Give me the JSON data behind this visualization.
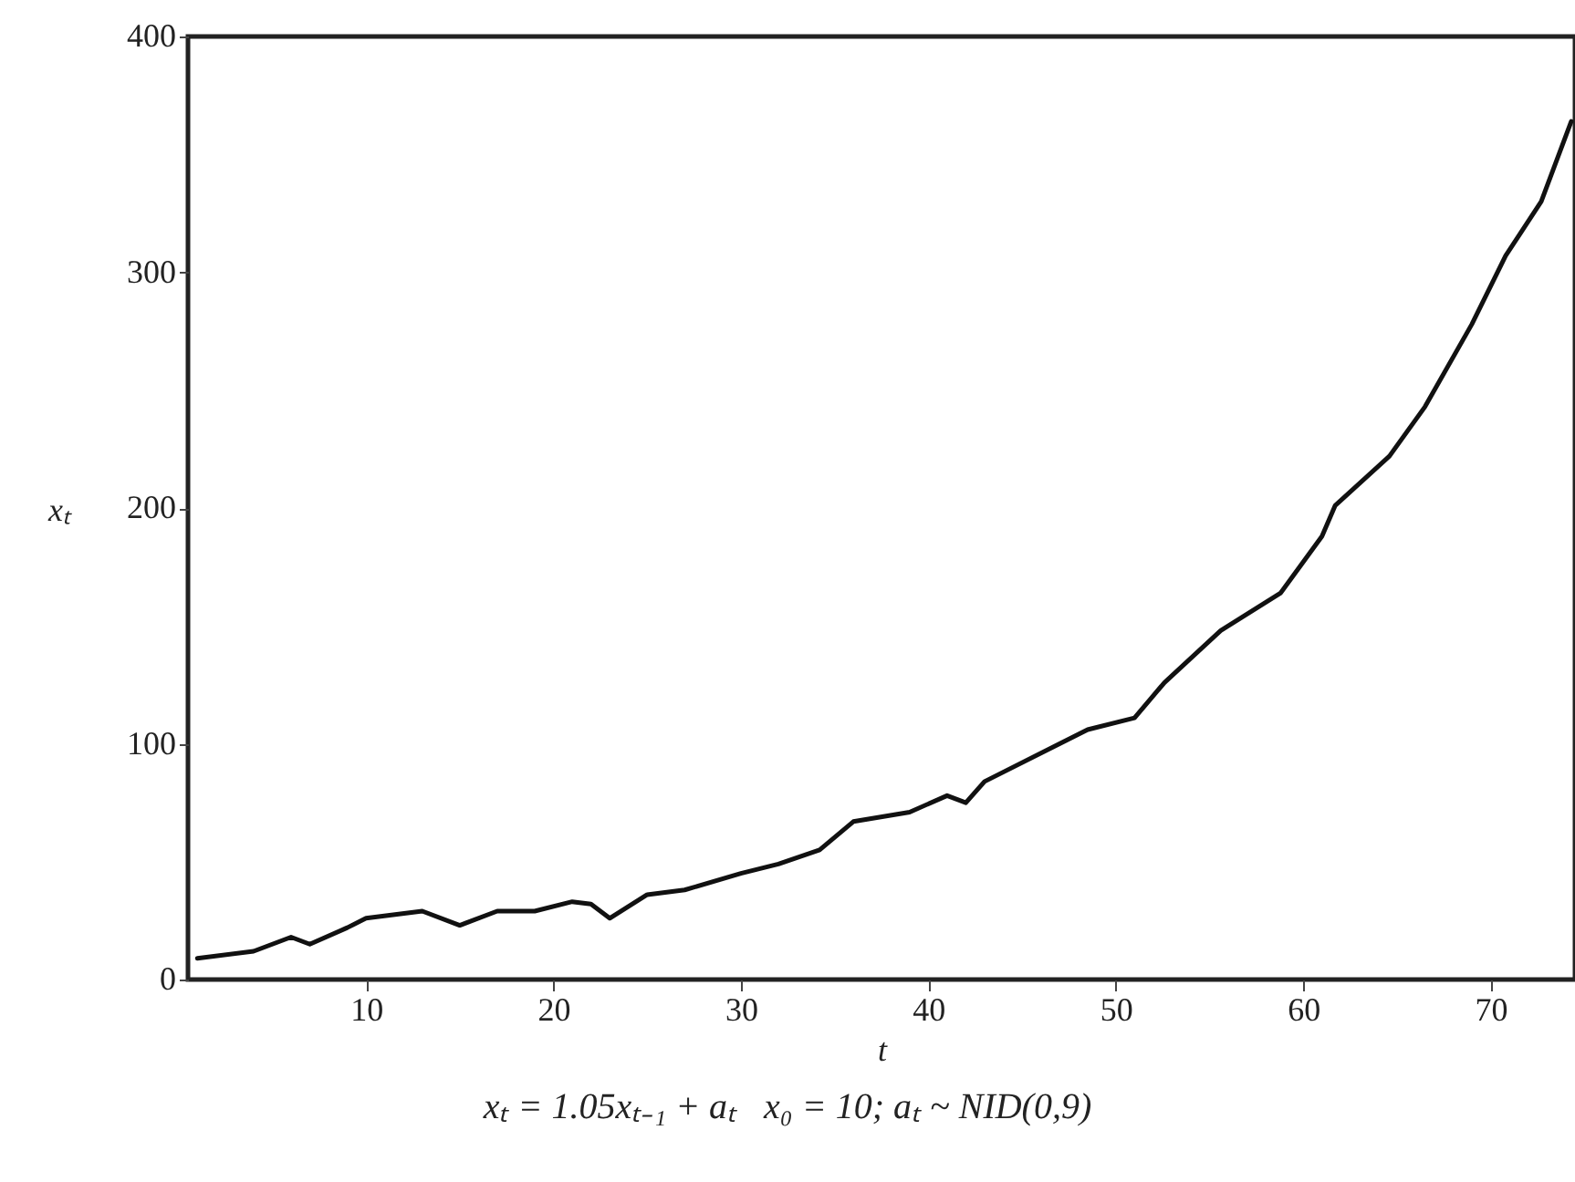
{
  "chart_data": {
    "type": "line",
    "xlabel": "t",
    "ylabel": "xₜ",
    "annotations": [
      "xₜ = 1.05xₜ₋₁ + aₜ   x₀ = 10; aₜ ~ NID(0,9)"
    ],
    "x": [
      1,
      4,
      6,
      7,
      9,
      10,
      13,
      15,
      17,
      19,
      21,
      22,
      23,
      25,
      27,
      30,
      32,
      34.2,
      36,
      39,
      41,
      42,
      43,
      47,
      48.5,
      51,
      52.6,
      55.6,
      58.8,
      61,
      61.7,
      64.6,
      66.5,
      69,
      70.8,
      72.7,
      74.3
    ],
    "series": [
      {
        "color": "#111111",
        "values": [
          9,
          12,
          18,
          15,
          22,
          26,
          29,
          23,
          29,
          29,
          33,
          32,
          26,
          36,
          38,
          45,
          49,
          55,
          67,
          71,
          78,
          75,
          84,
          100,
          106,
          111,
          126,
          148,
          164,
          188,
          201,
          222,
          243,
          278,
          307,
          330,
          364
        ]
      }
    ],
    "xlim": [
      0.5,
      74.5
    ],
    "ylim": [
      0,
      400
    ],
    "xticks": [
      10,
      20,
      30,
      40,
      50,
      60,
      70
    ],
    "yticks": [
      0,
      100,
      200,
      300,
      400
    ],
    "grid": false,
    "marker": "none",
    "line_style": "solid"
  }
}
